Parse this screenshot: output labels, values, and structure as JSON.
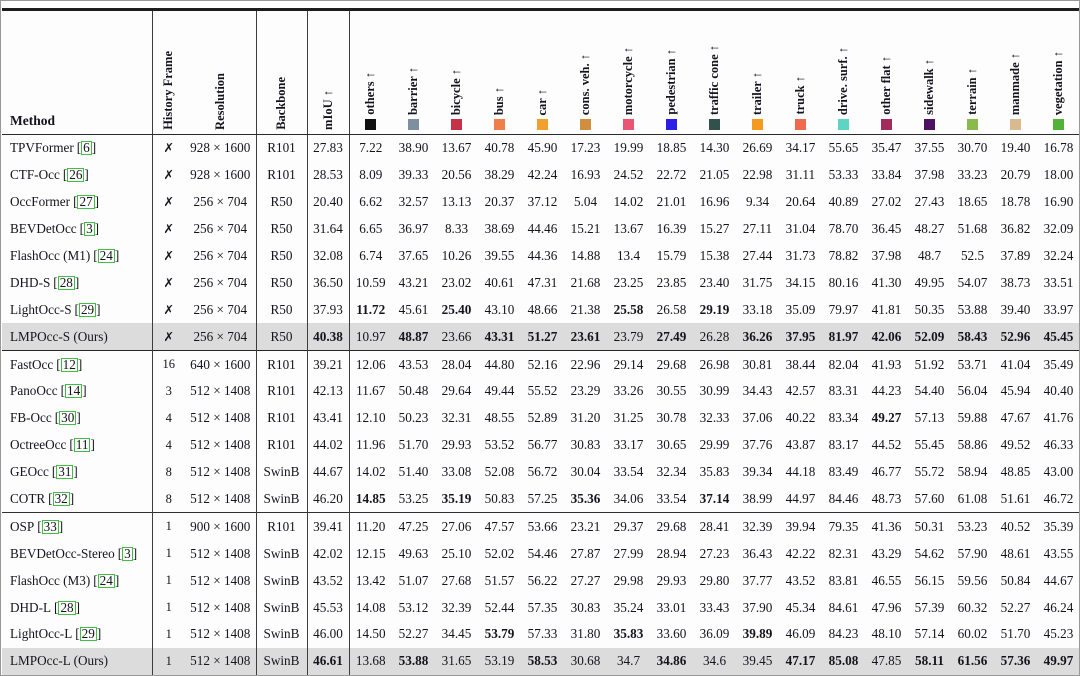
{
  "table": {
    "meta_headers": [
      "Method",
      "History Frame",
      "Resolution",
      "Backbone"
    ],
    "miou_header": "mIoU ↑",
    "arrow": "↑",
    "bracket_open": "[",
    "bracket_close": "]",
    "highlight_color": "#dcdcdc",
    "citation_box_color": "#3fbf3f",
    "class_headers": [
      {
        "label": "others ↑",
        "color": "#111111"
      },
      {
        "label": "barrier ↑",
        "color": "#7d8fa0"
      },
      {
        "label": "bicycle ↑",
        "color": "#c53247"
      },
      {
        "label": "bus ↑",
        "color": "#ee7f4b"
      },
      {
        "label": "car ↑",
        "color": "#f0a12d"
      },
      {
        "label": "cons. veh. ↑",
        "color": "#cf8f3e"
      },
      {
        "label": "motorcycle ↑",
        "color": "#e95572"
      },
      {
        "label": "pedestrian ↑",
        "color": "#2a1de8"
      },
      {
        "label": "traffic cone ↑",
        "color": "#31514a"
      },
      {
        "label": "trailer ↑",
        "color": "#f49b1f"
      },
      {
        "label": "truck ↑",
        "color": "#ee6a4f"
      },
      {
        "label": "drive. surf. ↑",
        "color": "#5cd5c5"
      },
      {
        "label": "other flat ↑",
        "color": "#a32b5c"
      },
      {
        "label": "sidewalk ↑",
        "color": "#4f1261"
      },
      {
        "label": "terrain ↑",
        "color": "#8aba4b"
      },
      {
        "label": "manmade ↑",
        "color": "#d9ba90"
      },
      {
        "label": "vegetation ↑",
        "color": "#52b238"
      }
    ],
    "sections": [
      {
        "rows": [
          {
            "method": "TPVFormer",
            "cite": "6",
            "history": "✗",
            "resolution": "928 × 1600",
            "backbone": "R101",
            "highlight": false,
            "bold": [],
            "values": [
              "27.83",
              "7.22",
              "38.90",
              "13.67",
              "40.78",
              "45.90",
              "17.23",
              "19.99",
              "18.85",
              "14.30",
              "26.69",
              "34.17",
              "55.65",
              "35.47",
              "37.55",
              "30.70",
              "19.40",
              "16.78"
            ]
          },
          {
            "method": "CTF-Occ",
            "cite": "26",
            "history": "✗",
            "resolution": "928 × 1600",
            "backbone": "R101",
            "highlight": false,
            "bold": [],
            "values": [
              "28.53",
              "8.09",
              "39.33",
              "20.56",
              "38.29",
              "42.24",
              "16.93",
              "24.52",
              "22.72",
              "21.05",
              "22.98",
              "31.11",
              "53.33",
              "33.84",
              "37.98",
              "33.23",
              "20.79",
              "18.00"
            ]
          },
          {
            "method": "OccFormer",
            "cite": "27",
            "history": "✗",
            "resolution": "256 × 704",
            "backbone": "R50",
            "highlight": false,
            "bold": [],
            "values": [
              "20.40",
              "6.62",
              "32.57",
              "13.13",
              "20.37",
              "37.12",
              "5.04",
              "14.02",
              "21.01",
              "16.96",
              "9.34",
              "20.64",
              "40.89",
              "27.02",
              "27.43",
              "18.65",
              "18.78",
              "16.90"
            ]
          },
          {
            "method": "BEVDetOcc",
            "cite": "3",
            "history": "✗",
            "resolution": "256 × 704",
            "backbone": "R50",
            "highlight": false,
            "bold": [],
            "values": [
              "31.64",
              "6.65",
              "36.97",
              "8.33",
              "38.69",
              "44.46",
              "15.21",
              "13.67",
              "16.39",
              "15.27",
              "27.11",
              "31.04",
              "78.70",
              "36.45",
              "48.27",
              "51.68",
              "36.82",
              "32.09"
            ]
          },
          {
            "method": "FlashOcc (M1)",
            "cite": "24",
            "history": "✗",
            "resolution": "256 × 704",
            "backbone": "R50",
            "highlight": false,
            "bold": [],
            "values": [
              "32.08",
              "6.74",
              "37.65",
              "10.26",
              "39.55",
              "44.36",
              "14.88",
              "13.4",
              "15.79",
              "15.38",
              "27.44",
              "31.73",
              "78.82",
              "37.98",
              "48.7",
              "52.5",
              "37.89",
              "32.24"
            ]
          },
          {
            "method": "DHD-S",
            "cite": "28",
            "history": "✗",
            "resolution": "256 × 704",
            "backbone": "R50",
            "highlight": false,
            "bold": [],
            "values": [
              "36.50",
              "10.59",
              "43.21",
              "23.02",
              "40.61",
              "47.31",
              "21.68",
              "23.25",
              "23.85",
              "23.40",
              "31.75",
              "34.15",
              "80.16",
              "41.30",
              "49.95",
              "54.07",
              "38.73",
              "33.51"
            ]
          },
          {
            "method": "LightOcc-S",
            "cite": "29",
            "history": "✗",
            "resolution": "256 × 704",
            "backbone": "R50",
            "highlight": false,
            "bold": [
              1,
              3,
              7,
              9
            ],
            "values": [
              "37.93",
              "11.72",
              "45.61",
              "25.40",
              "43.10",
              "48.66",
              "21.38",
              "25.58",
              "26.58",
              "29.19",
              "33.18",
              "35.09",
              "79.97",
              "41.81",
              "50.35",
              "53.88",
              "39.40",
              "33.97"
            ]
          },
          {
            "method": "LMPOcc-S (Ours)",
            "cite": "",
            "history": "✗",
            "resolution": "256 × 704",
            "backbone": "R50",
            "highlight": true,
            "bold": [
              0,
              2,
              4,
              5,
              6,
              8,
              10,
              11,
              12,
              13,
              14,
              15,
              16,
              17
            ],
            "values": [
              "40.38",
              "10.97",
              "48.87",
              "23.66",
              "43.31",
              "51.27",
              "23.61",
              "23.79",
              "27.49",
              "26.28",
              "36.26",
              "37.95",
              "81.97",
              "42.06",
              "52.09",
              "58.43",
              "52.96",
              "45.45"
            ]
          }
        ]
      },
      {
        "rows": [
          {
            "method": "FastOcc",
            "cite": "12",
            "history": "16",
            "resolution": "640 × 1600",
            "backbone": "R101",
            "highlight": false,
            "bold": [],
            "values": [
              "39.21",
              "12.06",
              "43.53",
              "28.04",
              "44.80",
              "52.16",
              "22.96",
              "29.14",
              "29.68",
              "26.98",
              "30.81",
              "38.44",
              "82.04",
              "41.93",
              "51.92",
              "53.71",
              "41.04",
              "35.49"
            ]
          },
          {
            "method": "PanoOcc",
            "cite": "14",
            "history": "3",
            "resolution": "512 × 1408",
            "backbone": "R101",
            "highlight": false,
            "bold": [],
            "values": [
              "42.13",
              "11.67",
              "50.48",
              "29.64",
              "49.44",
              "55.52",
              "23.29",
              "33.26",
              "30.55",
              "30.99",
              "34.43",
              "42.57",
              "83.31",
              "44.23",
              "54.40",
              "56.04",
              "45.94",
              "40.40"
            ]
          },
          {
            "method": "FB-Occ",
            "cite": "30",
            "history": "4",
            "resolution": "512 × 1408",
            "backbone": "R101",
            "highlight": false,
            "bold": [
              13
            ],
            "values": [
              "43.41",
              "12.10",
              "50.23",
              "32.31",
              "48.55",
              "52.89",
              "31.20",
              "31.25",
              "30.78",
              "32.33",
              "37.06",
              "40.22",
              "83.34",
              "49.27",
              "57.13",
              "59.88",
              "47.67",
              "41.76"
            ]
          },
          {
            "method": "OctreeOcc",
            "cite": "11",
            "history": "4",
            "resolution": "512 × 1408",
            "backbone": "R101",
            "highlight": false,
            "bold": [],
            "values": [
              "44.02",
              "11.96",
              "51.70",
              "29.93",
              "53.52",
              "56.77",
              "30.83",
              "33.17",
              "30.65",
              "29.99",
              "37.76",
              "43.87",
              "83.17",
              "44.52",
              "55.45",
              "58.86",
              "49.52",
              "46.33"
            ]
          },
          {
            "method": "GEOcc",
            "cite": "31",
            "history": "8",
            "resolution": "512 × 1408",
            "backbone": "SwinB",
            "highlight": false,
            "bold": [],
            "values": [
              "44.67",
              "14.02",
              "51.40",
              "33.08",
              "52.08",
              "56.72",
              "30.04",
              "33.54",
              "32.34",
              "35.83",
              "39.34",
              "44.18",
              "83.49",
              "46.77",
              "55.72",
              "58.94",
              "48.85",
              "43.00"
            ]
          },
          {
            "method": "COTR",
            "cite": "32",
            "history": "8",
            "resolution": "512 × 1408",
            "backbone": "SwinB",
            "highlight": false,
            "bold": [
              1,
              3,
              6,
              9
            ],
            "values": [
              "46.20",
              "14.85",
              "53.25",
              "35.19",
              "50.83",
              "57.25",
              "35.36",
              "34.06",
              "33.54",
              "37.14",
              "38.99",
              "44.97",
              "84.46",
              "48.73",
              "57.60",
              "61.08",
              "51.61",
              "46.72"
            ]
          }
        ]
      },
      {
        "rows": [
          {
            "method": "OSP",
            "cite": "33",
            "history": "1",
            "resolution": "900 × 1600",
            "backbone": "R101",
            "highlight": false,
            "bold": [],
            "values": [
              "39.41",
              "11.20",
              "47.25",
              "27.06",
              "47.57",
              "53.66",
              "23.21",
              "29.37",
              "29.68",
              "28.41",
              "32.39",
              "39.94",
              "79.35",
              "41.36",
              "50.31",
              "53.23",
              "40.52",
              "35.39"
            ]
          },
          {
            "method": "BEVDetOcc-Stereo",
            "cite": "3",
            "history": "1",
            "resolution": "512 × 1408",
            "backbone": "SwinB",
            "highlight": false,
            "bold": [],
            "values": [
              "42.02",
              "12.15",
              "49.63",
              "25.10",
              "52.02",
              "54.46",
              "27.87",
              "27.99",
              "28.94",
              "27.23",
              "36.43",
              "42.22",
              "82.31",
              "43.29",
              "54.62",
              "57.90",
              "48.61",
              "43.55"
            ]
          },
          {
            "method": "FlashOcc (M3)",
            "cite": "24",
            "history": "1",
            "resolution": "512 × 1408",
            "backbone": "SwinB",
            "highlight": false,
            "bold": [],
            "values": [
              "43.52",
              "13.42",
              "51.07",
              "27.68",
              "51.57",
              "56.22",
              "27.27",
              "29.98",
              "29.93",
              "29.80",
              "37.77",
              "43.52",
              "83.81",
              "46.55",
              "56.15",
              "59.56",
              "50.84",
              "44.67"
            ]
          },
          {
            "method": "DHD-L",
            "cite": "28",
            "history": "1",
            "resolution": "512 × 1408",
            "backbone": "SwinB",
            "highlight": false,
            "bold": [],
            "values": [
              "45.53",
              "14.08",
              "53.12",
              "32.39",
              "52.44",
              "57.35",
              "30.83",
              "35.24",
              "33.01",
              "33.43",
              "37.90",
              "45.34",
              "84.61",
              "47.96",
              "57.39",
              "60.32",
              "52.27",
              "46.24"
            ]
          },
          {
            "method": "LightOcc-L",
            "cite": "29",
            "history": "1",
            "resolution": "512 × 1408",
            "backbone": "SwinB",
            "highlight": false,
            "bold": [
              4,
              7,
              10
            ],
            "values": [
              "46.00",
              "14.50",
              "52.27",
              "34.45",
              "53.79",
              "57.33",
              "31.80",
              "35.83",
              "33.60",
              "36.09",
              "39.89",
              "46.09",
              "84.23",
              "48.10",
              "57.14",
              "60.02",
              "51.70",
              "45.23"
            ]
          },
          {
            "method": "LMPOcc-L (Ours)",
            "cite": "",
            "history": "1",
            "resolution": "512 × 1408",
            "backbone": "SwinB",
            "highlight": true,
            "bold": [
              0,
              2,
              5,
              8,
              11,
              12,
              14,
              15,
              16,
              17
            ],
            "values": [
              "46.61",
              "13.68",
              "53.88",
              "31.65",
              "53.19",
              "58.53",
              "30.68",
              "34.7",
              "34.86",
              "34.6",
              "39.45",
              "47.17",
              "85.08",
              "47.85",
              "58.11",
              "61.56",
              "57.36",
              "49.97"
            ]
          }
        ]
      }
    ]
  }
}
